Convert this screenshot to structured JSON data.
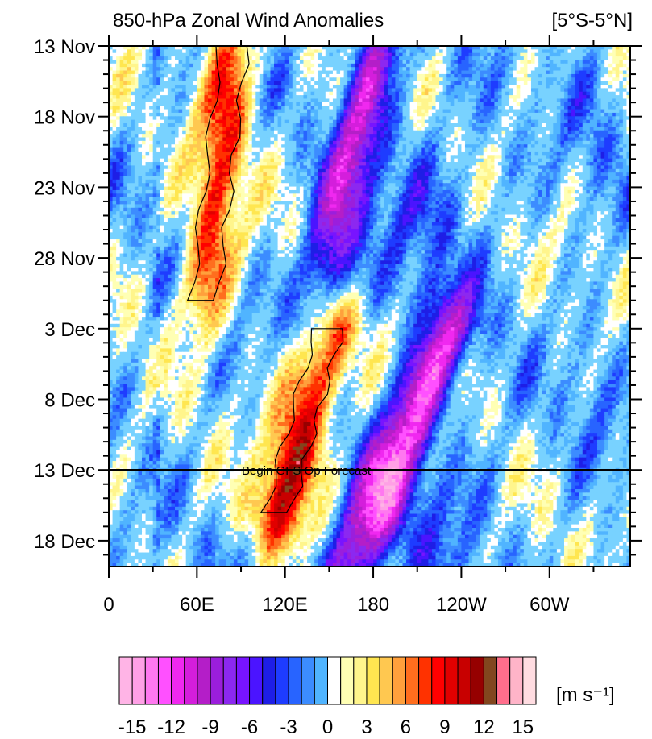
{
  "chart_data": {
    "type": "heatmap",
    "title": "850-hPa Zonal Wind Anomalies",
    "region_label": "[5°S-5°N]",
    "x_axis": {
      "tick_labels": [
        "0",
        "60E",
        "120E",
        "180",
        "120W",
        "60W"
      ],
      "tick_values_deg_east": [
        0,
        60,
        120,
        180,
        240,
        300
      ],
      "range_deg_east": [
        0,
        355
      ]
    },
    "y_axis": {
      "tick_labels": [
        "13 Nov",
        "18 Nov",
        "23 Nov",
        "28 Nov",
        "3 Dec",
        "8 Dec",
        "13 Dec",
        "18 Dec"
      ],
      "range": [
        "13 Nov",
        "20 Dec"
      ],
      "direction": "time increases downward"
    },
    "annotation": {
      "text": "Begin GFS Op Forecast",
      "date": "13 Dec"
    },
    "colorbar": {
      "unit": "[m s⁻¹]",
      "tick_labels": [
        "-15",
        "-12",
        "-9",
        "-6",
        "-3",
        "0",
        "3",
        "6",
        "9",
        "12",
        "15"
      ],
      "levels": [
        -16,
        -15,
        -14,
        -13,
        -12,
        -11,
        -10,
        -9,
        -8,
        -7,
        -6,
        -5,
        -4,
        -3,
        -2,
        -1,
        1,
        2,
        3,
        4,
        5,
        6,
        7,
        8,
        9,
        10,
        11,
        12,
        13,
        14,
        15,
        16
      ],
      "colors": [
        "#FFB4E6",
        "#FFA0E6",
        "#FF78F0",
        "#FF50FF",
        "#F028F0",
        "#D41EDC",
        "#B41EC8",
        "#9B1EDC",
        "#8C28F0",
        "#7814FF",
        "#4B14FF",
        "#1E1EE6",
        "#1E3CFF",
        "#2864FF",
        "#3C8CFF",
        "#50B4FF",
        "#78D2FF",
        "#FFFFFF",
        "#FFFFB4",
        "#FFF58C",
        "#FFE650",
        "#FFC850",
        "#FFA03C",
        "#FF6E1E",
        "#FF3200",
        "#FF0000",
        "#E10000",
        "#C80000",
        "#960000",
        "#82461E",
        "#FF6E8C",
        "#FFB4C8",
        "#FFDCE1"
      ]
    },
    "features": [
      {
        "name": "westerly anomaly band 1",
        "sign": "positive",
        "lon_start": 85,
        "lon_end": 65,
        "date_start": "13 Nov",
        "date_end": "1 Dec",
        "peak": 9
      },
      {
        "name": "westerly anomaly band 2",
        "sign": "positive",
        "lon_start": 150,
        "lon_end": 115,
        "date_start": "3 Dec",
        "date_end": "16 Dec",
        "peak": 12
      },
      {
        "name": "easterly anomaly band 1",
        "sign": "negative",
        "lon_start": 185,
        "lon_end": 140,
        "date_start": "13 Nov",
        "date_end": "2 Dec",
        "peak": -10
      },
      {
        "name": "easterly anomaly band 2",
        "sign": "negative",
        "lon_start": 230,
        "lon_end": 165,
        "date_start": "3 Dec",
        "date_end": "20 Dec",
        "peak": -12
      }
    ]
  }
}
